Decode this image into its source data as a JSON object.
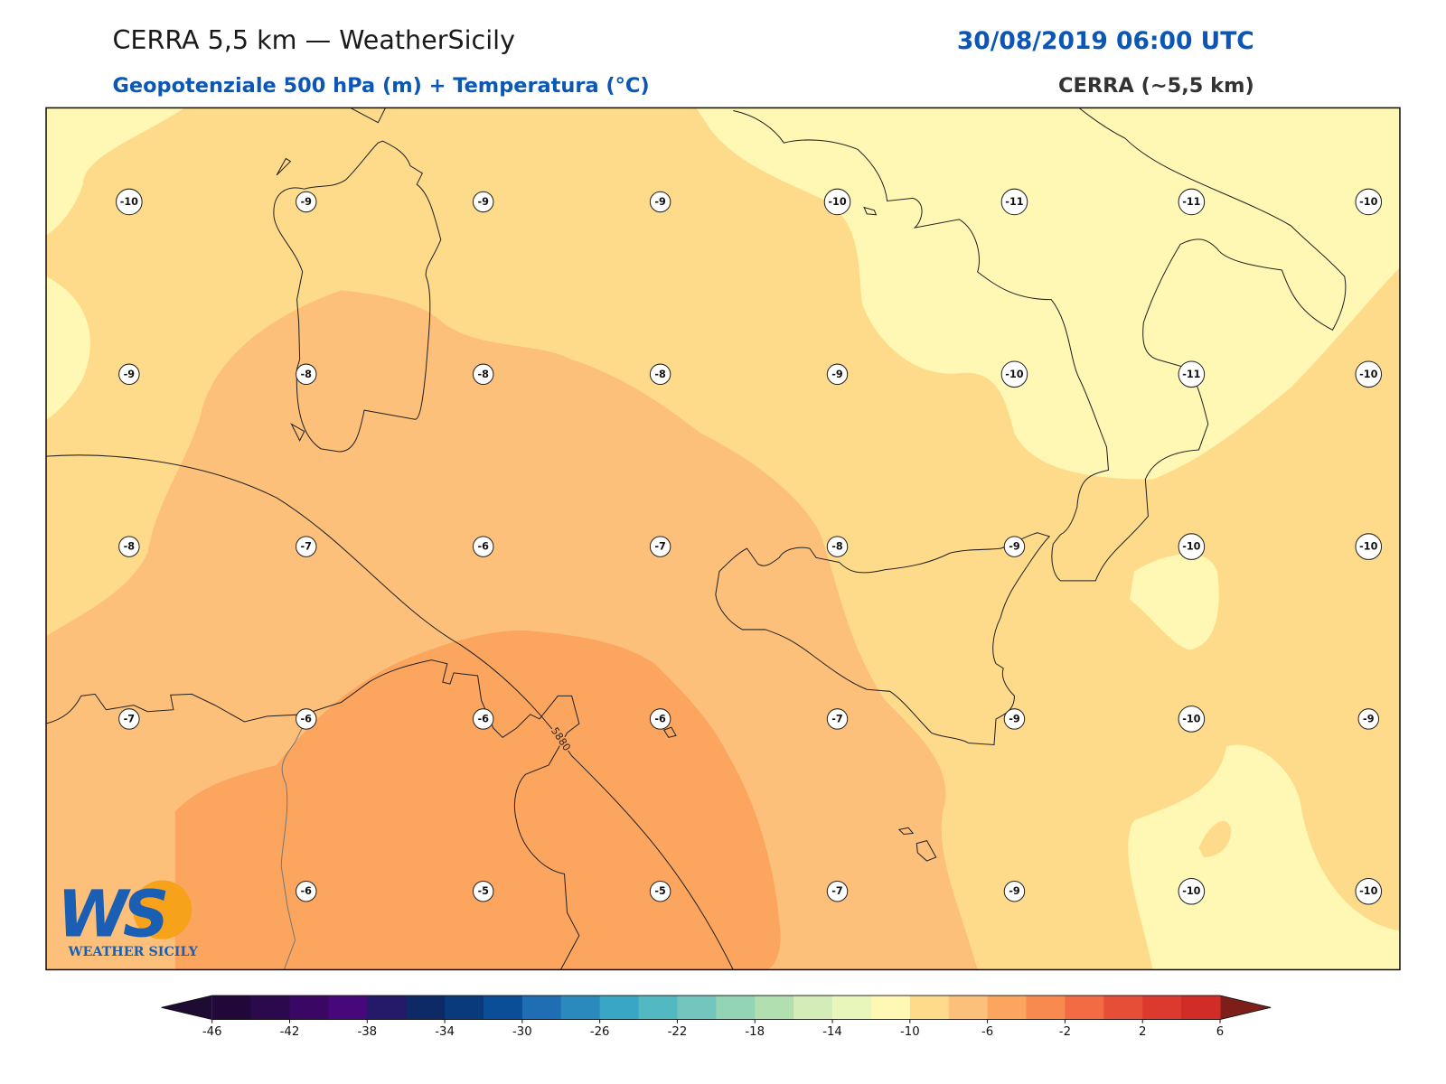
{
  "header": {
    "title": "CERRA 5,5 km — WeatherSicily",
    "datetime": "30/08/2019 06:00 UTC",
    "subtitle": "Geopotenziale 500 hPa (m) + Temperatura (°C)",
    "source": "CERRA (~5,5 km)"
  },
  "map": {
    "contour_label": "5880",
    "values": [
      [
        -10,
        -9,
        -9,
        -9,
        -10,
        -11,
        -11,
        -10
      ],
      [
        -9,
        -8,
        -8,
        -8,
        -9,
        -10,
        -11,
        -10
      ],
      [
        -8,
        -7,
        -6,
        -7,
        -8,
        -9,
        -10,
        -10
      ],
      [
        -7,
        -6,
        -6,
        -6,
        -7,
        -9,
        -10,
        -9
      ],
      [
        null,
        -6,
        -5,
        -5,
        -7,
        -9,
        -10,
        -10
      ]
    ]
  },
  "colorbar": {
    "ticks": [
      -46,
      -42,
      -38,
      -34,
      -30,
      -26,
      -22,
      -18,
      -14,
      -10,
      -6,
      -2,
      2,
      6
    ],
    "colors": [
      "#22083a",
      "#2c084c",
      "#3a0864",
      "#46087a",
      "#251a6a",
      "#0d2a66",
      "#083a7c",
      "#0b4e98",
      "#1f6db2",
      "#2a89bd",
      "#3aa6c6",
      "#52b9c3",
      "#72c6bd",
      "#92d4b4",
      "#b2dfb0",
      "#d4edb8",
      "#e8f6bb",
      "#fff8b4",
      "#fedb8b",
      "#fdc07a",
      "#fca55f",
      "#f88a50",
      "#f26b43",
      "#e64e38",
      "#dc3a2e",
      "#d22c26"
    ],
    "under_color": "#1e0a33",
    "over_color": "#7d1e1a"
  },
  "logo": {
    "mark": "WS",
    "name": "WEATHER SICILY"
  }
}
